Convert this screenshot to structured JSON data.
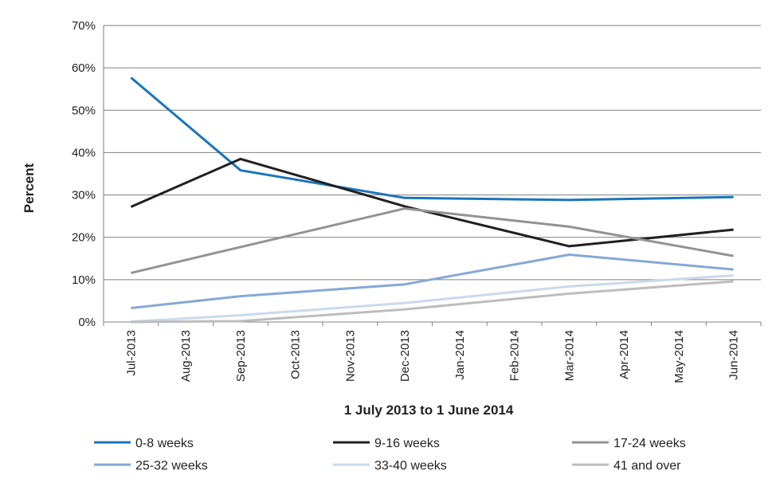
{
  "chart_data": {
    "type": "line",
    "title": "",
    "xlabel": "1 July 2013 to 1 June 2014",
    "ylabel": "Percent",
    "ylim": [
      0,
      70
    ],
    "y_ticks": [
      "0%",
      "10%",
      "20%",
      "30%",
      "40%",
      "50%",
      "60%",
      "70%"
    ],
    "y_tick_values": [
      0,
      10,
      20,
      30,
      40,
      50,
      60,
      70
    ],
    "grid": "horizontal",
    "legend_position": "bottom",
    "categories": [
      "Jul-2013",
      "Aug-2013",
      "Sep-2013",
      "Oct-2013",
      "Nov-2013",
      "Dec-2013",
      "Jan-2014",
      "Feb-2014",
      "Mar-2014",
      "Apr-2014",
      "May-2014",
      "Jun-2014"
    ],
    "series": [
      {
        "name": "0-8 weeks",
        "color": "#1a75bb",
        "points": [
          {
            "x": "Jul-2013",
            "y": 57.7
          },
          {
            "x": "Sep-2013",
            "y": 35.8
          },
          {
            "x": "Dec-2013",
            "y": 29.3
          },
          {
            "x": "Mar-2014",
            "y": 28.8
          },
          {
            "x": "Jun-2014",
            "y": 29.5
          }
        ]
      },
      {
        "name": "9-16 weeks",
        "color": "#231f20",
        "points": [
          {
            "x": "Jul-2013",
            "y": 27.2
          },
          {
            "x": "Sep-2013",
            "y": 38.5
          },
          {
            "x": "Dec-2013",
            "y": 27.3
          },
          {
            "x": "Mar-2014",
            "y": 17.9
          },
          {
            "x": "Jun-2014",
            "y": 21.8
          }
        ]
      },
      {
        "name": "17-24 weeks",
        "color": "#939393",
        "points": [
          {
            "x": "Jul-2013",
            "y": 11.6
          },
          {
            "x": "Sep-2013",
            "y": 17.7
          },
          {
            "x": "Dec-2013",
            "y": 26.8
          },
          {
            "x": "Mar-2014",
            "y": 22.5
          },
          {
            "x": "Jun-2014",
            "y": 15.6
          }
        ]
      },
      {
        "name": "25-32 weeks",
        "color": "#86a8d6",
        "points": [
          {
            "x": "Jul-2013",
            "y": 3.3
          },
          {
            "x": "Sep-2013",
            "y": 6.1
          },
          {
            "x": "Dec-2013",
            "y": 8.9
          },
          {
            "x": "Mar-2014",
            "y": 15.9
          },
          {
            "x": "Jun-2014",
            "y": 12.4
          }
        ]
      },
      {
        "name": "33-40 weeks",
        "color": "#cbd9ec",
        "points": [
          {
            "x": "Jul-2013",
            "y": 0.1
          },
          {
            "x": "Sep-2013",
            "y": 1.6
          },
          {
            "x": "Dec-2013",
            "y": 4.5
          },
          {
            "x": "Mar-2014",
            "y": 8.4
          },
          {
            "x": "Jun-2014",
            "y": 11.0
          }
        ]
      },
      {
        "name": "41 and over",
        "color": "#bdbdbd",
        "points": [
          {
            "x": "Jul-2013",
            "y": 0.0
          },
          {
            "x": "Sep-2013",
            "y": 0.2
          },
          {
            "x": "Dec-2013",
            "y": 3.0
          },
          {
            "x": "Mar-2014",
            "y": 6.7
          },
          {
            "x": "Jun-2014",
            "y": 9.6
          }
        ]
      }
    ]
  }
}
